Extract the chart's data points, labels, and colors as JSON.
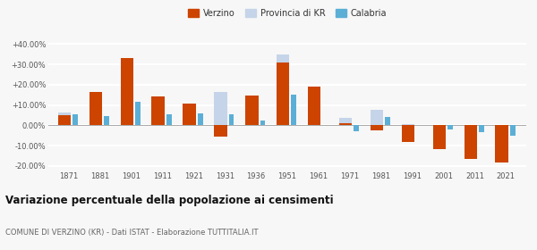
{
  "years": [
    1871,
    1881,
    1901,
    1911,
    1921,
    1931,
    1936,
    1951,
    1961,
    1971,
    1981,
    1991,
    2001,
    2011,
    2021
  ],
  "verzino": [
    5.0,
    16.5,
    33.0,
    14.0,
    10.8,
    -5.5,
    14.5,
    31.0,
    19.0,
    1.0,
    -2.5,
    -8.0,
    -11.5,
    -16.5,
    -18.5
  ],
  "provincia_kr": [
    6.5,
    16.0,
    17.0,
    5.5,
    5.5,
    16.5,
    8.0,
    35.0,
    16.5,
    3.5,
    7.5,
    0.5,
    -3.0,
    -2.5,
    -2.0
  ],
  "calabria": [
    5.5,
    4.5,
    11.5,
    5.5,
    6.0,
    5.5,
    2.5,
    15.0,
    null,
    -3.0,
    4.0,
    null,
    -2.0,
    -3.5,
    -5.0
  ],
  "color_verzino": "#cc4400",
  "color_provincia": "#c5d4e8",
  "color_calabria": "#5bafd6",
  "title": "Variazione percentuale della popolazione ai censimenti",
  "subtitle": "COMUNE DI VERZINO (KR) - Dati ISTAT - Elaborazione TUTTITALIA.IT",
  "ylim": [
    -22,
    42
  ],
  "yticks": [
    -20,
    -10,
    0,
    10,
    20,
    30,
    40
  ],
  "bg_color": "#f7f7f7",
  "grid_color": "#ffffff"
}
